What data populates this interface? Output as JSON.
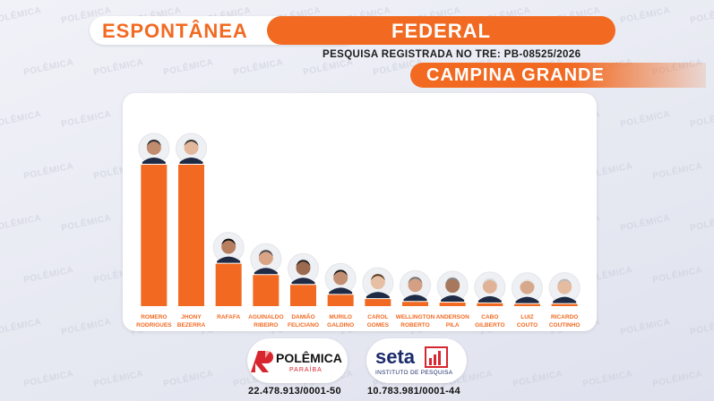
{
  "header": {
    "left_label": "ESPONTÂNEA",
    "right_label": "FEDERAL",
    "registration": "PESQUISA REGISTRADA NO TRE: PB-08525/2026",
    "city": "CAMPINA GRANDE"
  },
  "colors": {
    "accent": "#f26a21",
    "bar": "#f26a21",
    "panel": "#ffffff",
    "background": "#e9ebf3"
  },
  "chart_data": {
    "type": "bar",
    "categories": [
      [
        "ROMERO",
        "RODRIGUES"
      ],
      [
        "JHONY",
        "BEZERRA"
      ],
      [
        "RAFAFA"
      ],
      [
        "AGUINALDO",
        "RIBEIRO"
      ],
      [
        "DAMIÃO",
        "FELICIANO"
      ],
      [
        "MURILO",
        "GALDINO"
      ],
      [
        "CAROL",
        "GOMES"
      ],
      [
        "WELLINGTON",
        "ROBERTO"
      ],
      [
        "ANDERSON",
        "PILA"
      ],
      [
        "CABO",
        "GILBERTO"
      ],
      [
        "LUIZ",
        "COUTO"
      ],
      [
        "RICARDO",
        "COUTINHO"
      ]
    ],
    "values": [
      100,
      100,
      30,
      22,
      15,
      8,
      5,
      3,
      2.5,
      2,
      1.5,
      1.5
    ],
    "title": "",
    "xlabel": "",
    "ylabel": "",
    "ylim": [
      0,
      100
    ],
    "grid": false,
    "legend": "none"
  },
  "footer": {
    "logo1_name": "POLÊMICA",
    "logo1_sub": "PARAÍBA",
    "logo2_name": "seta",
    "logo2_sub": "INSTITUTO DE PESQUISA",
    "cnpj1": "22.478.913/0001-50",
    "cnpj2": "10.783.981/0001-44"
  },
  "watermark": "POLÊMICA"
}
